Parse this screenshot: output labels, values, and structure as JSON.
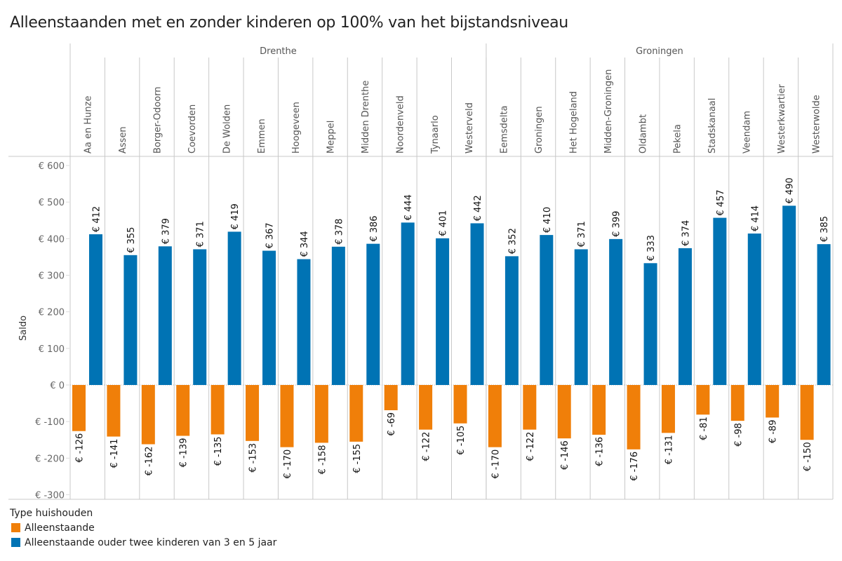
{
  "chart_data": {
    "type": "bar",
    "title": "Alleenstaanden met en zonder kinderen op 100% van het bijstandsniveau",
    "ylabel": "Saldo",
    "xlabel": "",
    "ylim": [
      -300,
      600
    ],
    "yticks": [
      600,
      500,
      400,
      300,
      200,
      100,
      0,
      -100,
      -200,
      -300
    ],
    "ytick_labels": [
      "€ 600",
      "€ 500",
      "€ 400",
      "€ 300",
      "€ 200",
      "€ 100",
      "€ 0",
      "€ -100",
      "€ -200",
      "€ -300"
    ],
    "value_prefix": "€ ",
    "grid": false,
    "groups": [
      {
        "name": "Drenthe",
        "categories": [
          "Aa en Hunze",
          "Assen",
          "Borger-Odoorn",
          "Coevorden",
          "De Wolden",
          "Emmen",
          "Hoogeveen",
          "Meppel",
          "Midden Drenthe",
          "Noordenveld",
          "Tynaarlo",
          "Westerveld"
        ]
      },
      {
        "name": "Groningen",
        "categories": [
          "Eemsdelta",
          "Groningen",
          "Het Hogeland",
          "Midden-Groningen",
          "Oldambt",
          "Pekela",
          "Stadskanaal",
          "Veendam",
          "Westerkwartier",
          "Westerwolde"
        ]
      }
    ],
    "categories": [
      "Aa en Hunze",
      "Assen",
      "Borger-Odoorn",
      "Coevorden",
      "De Wolden",
      "Emmen",
      "Hoogeveen",
      "Meppel",
      "Midden Drenthe",
      "Noordenveld",
      "Tynaarlo",
      "Westerveld",
      "Eemsdelta",
      "Groningen",
      "Het Hogeland",
      "Midden-Groningen",
      "Oldambt",
      "Pekela",
      "Stadskanaal",
      "Veendam",
      "Westerkwartier",
      "Westerwolde"
    ],
    "series": [
      {
        "name": "Alleenstaande",
        "color": "#F07F09",
        "values": [
          -126,
          -141,
          -162,
          -139,
          -135,
          -153,
          -170,
          -158,
          -155,
          -69,
          -122,
          -105,
          -170,
          -122,
          -146,
          -136,
          -176,
          -131,
          -81,
          -98,
          -89,
          -150
        ]
      },
      {
        "name": "Alleenstaande ouder twee kinderen van 3 en 5 jaar",
        "color": "#0073B4",
        "values": [
          412,
          355,
          379,
          371,
          419,
          367,
          344,
          378,
          386,
          444,
          401,
          442,
          352,
          410,
          371,
          399,
          333,
          374,
          457,
          414,
          490,
          385
        ]
      }
    ],
    "legend": {
      "title": "Type huishouden",
      "placement": "bottom-left"
    }
  }
}
